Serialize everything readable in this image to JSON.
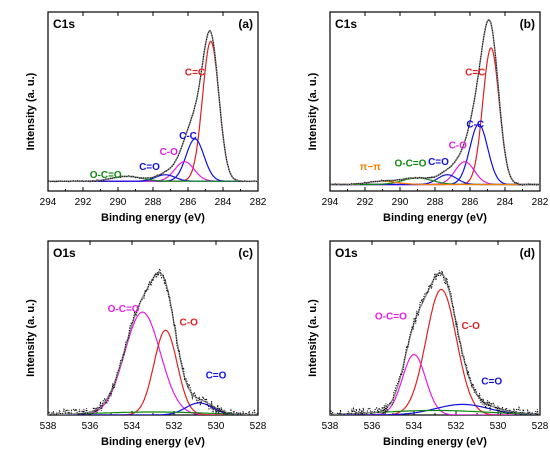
{
  "chart_data": [
    {
      "panel_label": "(a)",
      "title": "C1s",
      "type": "line",
      "xlabel": "Binding energy (eV)",
      "ylabel": "Intensity (a. u.)",
      "xlim": [
        294,
        282
      ],
      "xticks": [
        294,
        292,
        290,
        288,
        286,
        284,
        282
      ],
      "ylim": [
        0,
        1.1
      ],
      "baseline": 0.06,
      "raw_noise": 0.004,
      "components": [
        {
          "label": "C=C",
          "color": "#e02020",
          "center": 284.7,
          "height": 0.86,
          "width": 1.1
        },
        {
          "label": "C-C",
          "color": "#1010e0",
          "center": 285.6,
          "height": 0.26,
          "width": 1.2
        },
        {
          "label": "C-O",
          "color": "#e020e0",
          "center": 286.2,
          "height": 0.12,
          "width": 1.3
        },
        {
          "label": "C=O",
          "color": "#1010e0",
          "center": 287.3,
          "height": 0.04,
          "width": 1.3
        },
        {
          "label": "O-C=O",
          "color": "#118811",
          "center": 289.5,
          "height": 0.03,
          "width": 2.0
        }
      ],
      "annotations": [
        {
          "text": "C=C",
          "color": "#e02020",
          "x": 285.6,
          "y": 0.71
        },
        {
          "text": "C-C",
          "color": "#1010e0",
          "x": 286.0,
          "y": 0.32
        },
        {
          "text": "C-O",
          "color": "#e020e0",
          "x": 287.1,
          "y": 0.22
        },
        {
          "text": "C=O",
          "color": "#1010e0",
          "x": 288.2,
          "y": 0.13
        },
        {
          "text": "O-C=O",
          "color": "#118811",
          "x": 290.7,
          "y": 0.08
        }
      ]
    },
    {
      "panel_label": "(b)",
      "title": "C1s",
      "type": "line",
      "xlabel": "Binding energy (eV)",
      "ylabel": "Intensity (a. u.)",
      "xlim": [
        294,
        282
      ],
      "xticks": [
        294,
        292,
        290,
        288,
        286,
        284,
        282
      ],
      "ylim": [
        0,
        1.1
      ],
      "baseline": 0.04,
      "raw_noise": 0.005,
      "components": [
        {
          "label": "C=C",
          "color": "#e02020",
          "center": 284.8,
          "height": 0.84,
          "width": 1.1
        },
        {
          "label": "C-C",
          "color": "#1010e0",
          "center": 285.5,
          "height": 0.37,
          "width": 1.2
        },
        {
          "label": "C-O",
          "color": "#e020e0",
          "center": 286.3,
          "height": 0.14,
          "width": 1.3
        },
        {
          "label": "C=O",
          "color": "#1010e0",
          "center": 287.3,
          "height": 0.06,
          "width": 1.3
        },
        {
          "label": "O-C=O",
          "color": "#118811",
          "center": 289.0,
          "height": 0.04,
          "width": 2.0
        },
        {
          "label": "π−π",
          "color": "#f08000",
          "center": 291.0,
          "height": 0.02,
          "width": 2.0
        }
      ],
      "annotations": [
        {
          "text": "C=C",
          "color": "#e02020",
          "x": 285.7,
          "y": 0.71
        },
        {
          "text": "C-C",
          "color": "#1010e0",
          "x": 285.7,
          "y": 0.39
        },
        {
          "text": "C-O",
          "color": "#e020e0",
          "x": 286.7,
          "y": 0.26
        },
        {
          "text": "C=O",
          "color": "#1010e0",
          "x": 287.8,
          "y": 0.16
        },
        {
          "text": "O-C=O",
          "color": "#118811",
          "x": 289.4,
          "y": 0.15
        },
        {
          "text": "π−π",
          "color": "#f08000",
          "x": 291.7,
          "y": 0.13
        }
      ]
    },
    {
      "panel_label": "(c)",
      "title": "O1s",
      "type": "line",
      "xlabel": "Binding energy (eV)",
      "ylabel": "Intensity (a. u.)",
      "xlim": [
        538,
        528
      ],
      "xticks": [
        538,
        536,
        534,
        532,
        530,
        528
      ],
      "ylim": [
        0,
        1.15
      ],
      "baseline": 0.0,
      "raw_noise": 0.035,
      "components": [
        {
          "label": "O-C=O",
          "color": "#e020e0",
          "center": 533.5,
          "height": 0.68,
          "width": 2.0
        },
        {
          "label": "C-O",
          "color": "#e02020",
          "center": 532.4,
          "height": 0.56,
          "width": 1.3
        },
        {
          "label": "C=O",
          "color": "#1010e0",
          "center": 530.8,
          "height": 0.08,
          "width": 1.5
        },
        {
          "label": "",
          "color": "#118811",
          "center": 533.0,
          "height": 0.02,
          "width": 6.0
        }
      ],
      "annotations": [
        {
          "text": "O-C=O",
          "color": "#e020e0",
          "x": 534.4,
          "y": 0.68
        },
        {
          "text": "C-O",
          "color": "#e02020",
          "x": 531.3,
          "y": 0.59
        },
        {
          "text": "C=O",
          "color": "#1010e0",
          "x": 530.0,
          "y": 0.24
        }
      ]
    },
    {
      "panel_label": "(d)",
      "title": "O1s",
      "type": "line",
      "xlabel": "Binding energy (eV)",
      "ylabel": "Intensity (a. u.)",
      "xlim": [
        538,
        528
      ],
      "xticks": [
        538,
        536,
        534,
        532,
        530,
        528
      ],
      "ylim": [
        0,
        1.15
      ],
      "baseline": 0.0,
      "raw_noise": 0.035,
      "components": [
        {
          "label": "C-O",
          "color": "#e02020",
          "center": 532.7,
          "height": 0.83,
          "width": 1.7
        },
        {
          "label": "O-C=O",
          "color": "#e020e0",
          "center": 534.0,
          "height": 0.4,
          "width": 1.3
        },
        {
          "label": "C=O",
          "color": "#1010e0",
          "center": 531.7,
          "height": 0.07,
          "width": 3.0
        },
        {
          "label": "",
          "color": "#118811",
          "center": 533.0,
          "height": 0.03,
          "width": 6.0
        }
      ],
      "annotations": [
        {
          "text": "O-C=O",
          "color": "#e020e0",
          "x": 535.1,
          "y": 0.63
        },
        {
          "text": "C-O",
          "color": "#e02020",
          "x": 531.3,
          "y": 0.57
        },
        {
          "text": "C=O",
          "color": "#1010e0",
          "x": 530.3,
          "y": 0.2
        }
      ]
    }
  ]
}
